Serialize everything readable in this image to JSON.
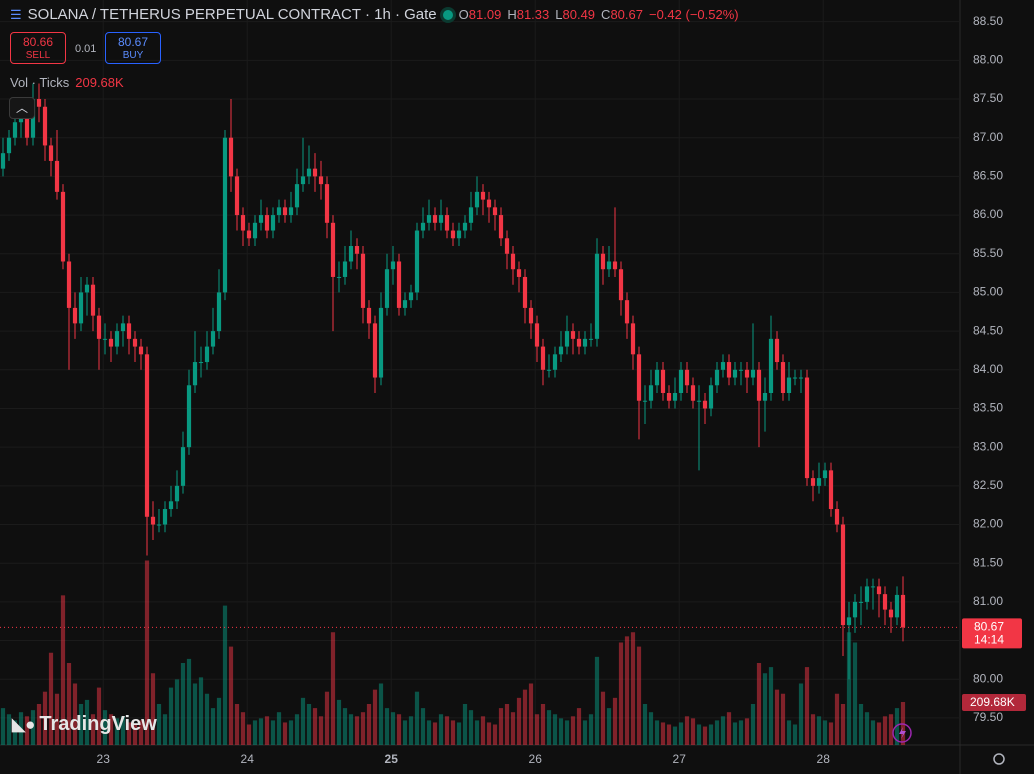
{
  "chart_data": {
    "type": "candlestick",
    "title": "SOLANA / TETHERUS PERPETUAL CONTRACT · 1h · Gate",
    "ohlc_header": [
      {
        "label": "O",
        "value": 81.09
      },
      {
        "label": "H",
        "value": 81.33
      },
      {
        "label": "L",
        "value": 80.49
      },
      {
        "label": "C",
        "value": 80.67
      }
    ],
    "change": "−0.42 (−0.52%)",
    "sell": {
      "price": 80.66,
      "label": "SELL"
    },
    "spread": 0.01,
    "buy": {
      "price": 80.67,
      "label": "BUY"
    },
    "volume_title": "Vol · Ticks",
    "last_price": {
      "label": "80.67",
      "countdown": "14:14"
    },
    "branding": "TradingView",
    "up_color": "#089981",
    "down_color": "#f23645",
    "grid": true,
    "xlim": [
      -0.5,
      159.5
    ],
    "xticks": [
      {
        "value": 16.7,
        "label": "23"
      },
      {
        "value": 40.7,
        "label": "24"
      },
      {
        "value": 64.7,
        "label": "25"
      },
      {
        "value": 88.7,
        "label": "26"
      },
      {
        "value": 112.7,
        "label": "27"
      },
      {
        "value": 136.7,
        "label": "28"
      }
    ],
    "ylim": [
      79.15,
      88.78
    ],
    "yticks": [
      {
        "value": 79.5,
        "label": "79.50"
      },
      {
        "value": 80,
        "label": "80.00"
      },
      {
        "value": 80.5,
        "label": "80.50"
      },
      {
        "value": 81,
        "label": "81.00"
      },
      {
        "value": 81.5,
        "label": "81.50"
      },
      {
        "value": 82,
        "label": "82.00"
      },
      {
        "value": 82.5,
        "label": "82.50"
      },
      {
        "value": 83,
        "label": "83.00"
      },
      {
        "value": 83.5,
        "label": "83.50"
      },
      {
        "value": 84,
        "label": "84.00"
      },
      {
        "value": 84.5,
        "label": "84.50"
      },
      {
        "value": 85,
        "label": "85.00"
      },
      {
        "value": 85.5,
        "label": "85.50"
      },
      {
        "value": 86,
        "label": "86.00"
      },
      {
        "value": 86.5,
        "label": "86.50"
      },
      {
        "value": 87,
        "label": "87.00"
      },
      {
        "value": 87.5,
        "label": "87.50"
      },
      {
        "value": 88,
        "label": "88.00"
      },
      {
        "value": 88.5,
        "label": "88.50"
      }
    ],
    "open": [
      86.6,
      86.8,
      87.0,
      87.2,
      87.3,
      87.0,
      87.5,
      87.4,
      86.9,
      86.7,
      86.3,
      85.4,
      84.8,
      84.6,
      85.0,
      85.1,
      84.7,
      84.4,
      84.4,
      84.3,
      84.5,
      84.6,
      84.4,
      84.3,
      84.2,
      82.1,
      82.0,
      82.0,
      82.2,
      82.3,
      82.5,
      83.0,
      83.8,
      84.1,
      84.1,
      84.3,
      84.5,
      85.0,
      87.0,
      86.5,
      86.0,
      85.8,
      85.7,
      85.9,
      86.0,
      85.8,
      86.0,
      86.1,
      86.0,
      86.1,
      86.4,
      86.5,
      86.6,
      86.5,
      86.4,
      85.9,
      85.2,
      85.2,
      85.4,
      85.6,
      85.5,
      84.8,
      84.6,
      83.9,
      84.8,
      85.3,
      85.4,
      84.8,
      84.9,
      85.0,
      85.8,
      85.9,
      86.0,
      85.9,
      86.0,
      85.8,
      85.7,
      85.8,
      85.9,
      86.1,
      86.3,
      86.2,
      86.1,
      86.0,
      85.7,
      85.5,
      85.3,
      85.2,
      84.8,
      84.6,
      84.3,
      84.0,
      84.0,
      84.2,
      84.3,
      84.5,
      84.4,
      84.3,
      84.4,
      84.4,
      85.5,
      85.3,
      85.4,
      85.3,
      84.9,
      84.6,
      84.2,
      83.6,
      83.6,
      83.8,
      84.0,
      83.7,
      83.6,
      83.7,
      84.0,
      83.8,
      83.6,
      83.6,
      83.5,
      83.8,
      84.0,
      84.1,
      83.9,
      84.0,
      84.0,
      83.9,
      84.0,
      83.6,
      83.7,
      84.4,
      84.1,
      83.7,
      83.9,
      83.9,
      83.9,
      82.6,
      82.5,
      82.6,
      82.7,
      82.2,
      82.0,
      80.7,
      80.8,
      81.0,
      81.0,
      81.2,
      81.2,
      81.1,
      80.9,
      80.8,
      81.09
    ],
    "high": [
      87.0,
      87.1,
      87.4,
      87.5,
      87.4,
      87.7,
      87.7,
      87.5,
      87.0,
      87.1,
      86.4,
      85.5,
      85.0,
      85.2,
      85.2,
      85.2,
      84.8,
      84.6,
      84.5,
      84.6,
      84.7,
      84.7,
      84.5,
      84.4,
      84.3,
      82.3,
      82.2,
      82.3,
      82.5,
      82.7,
      83.2,
      84.0,
      84.5,
      84.3,
      84.5,
      84.8,
      85.3,
      87.1,
      87.5,
      86.6,
      86.1,
      85.9,
      86.0,
      86.2,
      86.1,
      86.1,
      86.2,
      86.2,
      86.3,
      86.6,
      87.0,
      86.9,
      86.8,
      86.7,
      86.5,
      86.0,
      85.4,
      85.6,
      85.8,
      85.7,
      85.6,
      84.9,
      84.7,
      85.0,
      85.5,
      85.6,
      85.5,
      85.0,
      85.1,
      85.9,
      86.1,
      86.2,
      86.1,
      86.2,
      86.1,
      85.9,
      85.9,
      86.0,
      86.3,
      86.5,
      86.4,
      86.3,
      86.2,
      86.1,
      85.8,
      85.6,
      85.4,
      85.3,
      84.9,
      84.7,
      84.4,
      84.2,
      84.3,
      84.5,
      84.7,
      84.6,
      84.5,
      84.5,
      84.6,
      85.7,
      85.6,
      85.6,
      86.1,
      85.4,
      85.0,
      84.7,
      84.3,
      83.8,
      84.0,
      84.1,
      84.1,
      83.8,
      83.9,
      84.1,
      84.1,
      83.9,
      83.8,
      83.7,
      83.9,
      84.1,
      84.2,
      84.2,
      84.1,
      84.1,
      84.1,
      84.6,
      84.1,
      83.9,
      84.7,
      84.5,
      84.2,
      84.1,
      84.0,
      84.0,
      84.0,
      82.7,
      82.8,
      82.8,
      82.8,
      82.3,
      82.1,
      81.0,
      81.1,
      81.2,
      81.3,
      81.3,
      81.3,
      81.2,
      81.0,
      81.2,
      81.33
    ],
    "low": [
      86.5,
      86.7,
      86.9,
      87.0,
      86.9,
      86.9,
      87.2,
      86.7,
      86.5,
      86.2,
      85.3,
      84.0,
      84.4,
      84.5,
      84.7,
      84.5,
      84.0,
      84.2,
      84.1,
      84.2,
      84.3,
      84.2,
      84.1,
      84.0,
      81.6,
      81.8,
      81.9,
      81.9,
      82.1,
      82.2,
      82.4,
      82.9,
      83.7,
      83.9,
      84.0,
      84.2,
      84.4,
      84.9,
      86.3,
      85.8,
      85.6,
      85.6,
      85.6,
      85.8,
      85.7,
      85.7,
      85.9,
      85.9,
      85.9,
      86.0,
      86.3,
      86.4,
      86.3,
      86.2,
      85.7,
      84.5,
      85.0,
      85.1,
      85.3,
      85.3,
      84.6,
      84.4,
      83.7,
      83.8,
      84.7,
      85.1,
      84.7,
      84.7,
      84.8,
      84.9,
      85.7,
      85.8,
      85.8,
      85.8,
      85.7,
      85.6,
      85.6,
      85.7,
      85.8,
      86.0,
      86.0,
      85.9,
      85.8,
      85.6,
      85.3,
      85.1,
      85.0,
      84.6,
      84.4,
      84.1,
      83.8,
      83.9,
      83.9,
      84.1,
      84.2,
      84.2,
      84.2,
      84.2,
      84.3,
      84.3,
      85.1,
      85.2,
      85.2,
      84.7,
      84.4,
      84.0,
      83.1,
      83.3,
      83.5,
      83.7,
      83.6,
      83.5,
      83.5,
      83.6,
      83.7,
      83.5,
      82.7,
      83.3,
      83.4,
      83.7,
      83.9,
      83.8,
      83.8,
      83.8,
      83.7,
      83.8,
      83.0,
      83.2,
      83.6,
      84.0,
      83.6,
      83.6,
      83.8,
      83.7,
      82.5,
      82.3,
      82.4,
      82.5,
      82.1,
      81.9,
      80.3,
      80.0,
      80.6,
      80.7,
      80.9,
      80.9,
      80.8,
      80.7,
      80.6,
      80.7,
      80.49
    ],
    "close": [
      86.8,
      87.0,
      87.2,
      87.3,
      87.0,
      87.5,
      87.4,
      86.9,
      86.7,
      86.3,
      85.4,
      84.8,
      84.6,
      85.0,
      85.1,
      84.7,
      84.4,
      84.4,
      84.3,
      84.5,
      84.6,
      84.4,
      84.3,
      84.2,
      82.1,
      82.0,
      82.0,
      82.2,
      82.3,
      82.5,
      83.0,
      83.8,
      84.1,
      84.1,
      84.3,
      84.5,
      85.0,
      87.0,
      86.5,
      86.0,
      85.8,
      85.7,
      85.9,
      86.0,
      85.8,
      86.0,
      86.1,
      86.0,
      86.1,
      86.4,
      86.5,
      86.6,
      86.5,
      86.4,
      85.9,
      85.2,
      85.2,
      85.4,
      85.6,
      85.5,
      84.8,
      84.6,
      83.9,
      84.8,
      85.3,
      85.4,
      84.8,
      84.9,
      85.0,
      85.8,
      85.9,
      86.0,
      85.9,
      86.0,
      85.8,
      85.7,
      85.8,
      85.9,
      86.1,
      86.3,
      86.2,
      86.1,
      86.0,
      85.7,
      85.5,
      85.3,
      85.2,
      84.8,
      84.6,
      84.3,
      84.0,
      84.0,
      84.2,
      84.3,
      84.5,
      84.4,
      84.3,
      84.4,
      84.4,
      85.5,
      85.3,
      85.4,
      85.3,
      84.9,
      84.6,
      84.2,
      83.6,
      83.6,
      83.8,
      84.0,
      83.7,
      83.6,
      83.7,
      84.0,
      83.8,
      83.6,
      83.6,
      83.5,
      83.8,
      84.0,
      84.1,
      83.9,
      84.0,
      84.0,
      83.9,
      84.0,
      83.6,
      83.7,
      84.4,
      84.1,
      83.7,
      83.9,
      83.9,
      83.9,
      82.6,
      82.5,
      82.6,
      82.7,
      82.2,
      82.0,
      80.7,
      80.8,
      81.0,
      81.0,
      81.2,
      81.2,
      81.1,
      80.9,
      80.8,
      81.09,
      80.67
    ],
    "volume": {
      "values": [
        180000,
        150000,
        120000,
        160000,
        140000,
        170000,
        200000,
        260000,
        450000,
        250000,
        730000,
        400000,
        300000,
        200000,
        220000,
        150000,
        280000,
        170000,
        150000,
        130000,
        140000,
        110000,
        100000,
        120000,
        900000,
        350000,
        200000,
        150000,
        280000,
        320000,
        400000,
        420000,
        300000,
        330000,
        250000,
        180000,
        230000,
        680000,
        480000,
        200000,
        160000,
        100000,
        120000,
        130000,
        140000,
        120000,
        160000,
        110000,
        120000,
        150000,
        230000,
        200000,
        180000,
        140000,
        260000,
        550000,
        220000,
        180000,
        150000,
        140000,
        160000,
        200000,
        270000,
        300000,
        180000,
        160000,
        150000,
        120000,
        140000,
        260000,
        180000,
        120000,
        110000,
        150000,
        140000,
        120000,
        110000,
        200000,
        170000,
        120000,
        140000,
        110000,
        100000,
        180000,
        200000,
        160000,
        230000,
        270000,
        300000,
        150000,
        200000,
        170000,
        150000,
        130000,
        120000,
        140000,
        180000,
        120000,
        150000,
        430000,
        260000,
        180000,
        230000,
        500000,
        530000,
        550000,
        480000,
        200000,
        160000,
        120000,
        110000,
        100000,
        90000,
        110000,
        140000,
        130000,
        100000,
        90000,
        100000,
        120000,
        140000,
        160000,
        110000,
        120000,
        130000,
        200000,
        400000,
        350000,
        380000,
        270000,
        250000,
        120000,
        100000,
        300000,
        380000,
        150000,
        140000,
        120000,
        110000,
        250000,
        200000,
        550000,
        500000,
        200000,
        160000,
        120000,
        110000,
        140000,
        150000,
        180000,
        209680
      ],
      "last_label": "209.68K"
    },
    "vlim": [
      0,
      1000000
    ]
  }
}
